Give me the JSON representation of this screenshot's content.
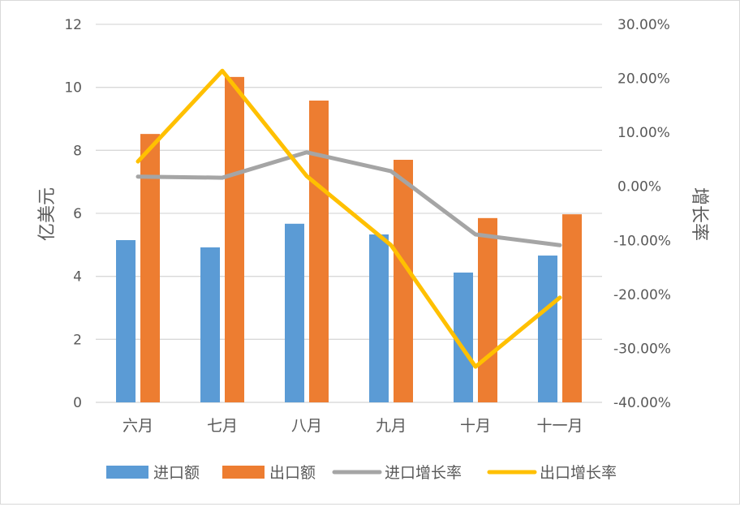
{
  "chart_data": {
    "type": "bar",
    "combo": "bar+line dual-axis",
    "title": "",
    "categories": [
      "六月",
      "七月",
      "八月",
      "九月",
      "十月",
      "十一月"
    ],
    "series": [
      {
        "name": "进口额",
        "type": "bar",
        "axis": "left",
        "color": "#5b9bd5",
        "values": [
          5.15,
          4.92,
          5.67,
          5.33,
          4.12,
          4.66
        ]
      },
      {
        "name": "出口额",
        "type": "bar",
        "axis": "left",
        "color": "#ed7d31",
        "values": [
          8.52,
          10.33,
          9.58,
          7.7,
          5.85,
          5.97
        ]
      },
      {
        "name": "进口增长率",
        "type": "line",
        "axis": "right",
        "color": "#a5a5a5",
        "values": [
          1.8,
          1.6,
          6.3,
          2.8,
          -8.9,
          -10.9
        ]
      },
      {
        "name": "出口增长率",
        "type": "line",
        "axis": "right",
        "color": "#ffc000",
        "values": [
          4.6,
          21.4,
          1.9,
          -10.9,
          -33.4,
          -20.6
        ]
      }
    ],
    "xlabel": "",
    "ylabel": "亿美元",
    "ylabel_right": "增长率",
    "ylim": [
      0,
      12
    ],
    "yticks": [
      "0",
      "2",
      "4",
      "6",
      "8",
      "10",
      "12"
    ],
    "ylim_right": [
      -40,
      30
    ],
    "yticks_right": [
      "-40.00%",
      "-30.00%",
      "-20.00%",
      "-10.00%",
      "0.00%",
      "10.00%",
      "20.00%",
      "30.00%"
    ],
    "grid": true,
    "legend_position": "bottom"
  }
}
